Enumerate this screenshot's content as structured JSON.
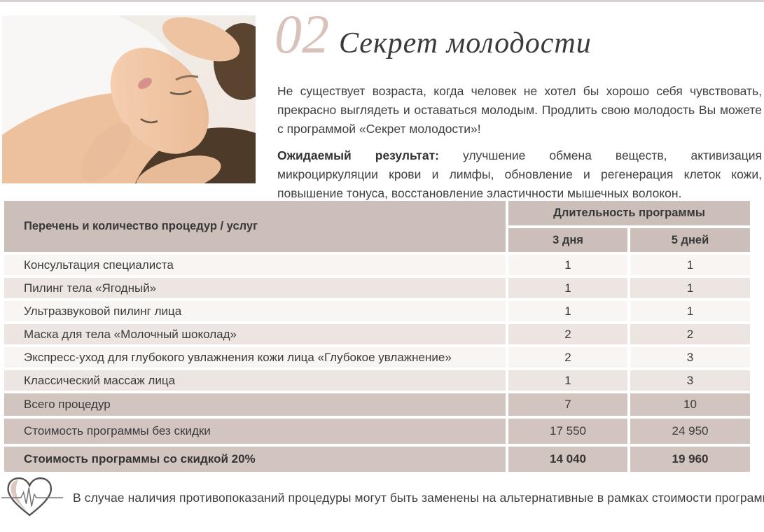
{
  "header": {
    "section_number": "02",
    "title": "Секрет молодости"
  },
  "intro": {
    "text": "Не существует возраста, когда человек не хотел бы хорошо себя чувствовать, прекрасно выглядеть и оставаться молодым. Продлить свою молодость Вы можете с программой «Секрет молодости»!"
  },
  "expected": {
    "label": "Ожидаемый результат:",
    "text": " улучшение обмена веществ, активизация микроциркуляции крови и лимфы, обновление и регенерация клеток кожи, повышение тонуса, восстановление эластичности мышечных волокон."
  },
  "table": {
    "services_header": "Перечень и количество процедур / услуг",
    "duration_header": "Длительность программы",
    "col_3_days": "3 дня",
    "col_5_days": "5 дней",
    "items": [
      {
        "label": "Консультация специалиста",
        "days3": "1",
        "days5": "1"
      },
      {
        "label": "Пилинг тела «Ягодный»",
        "days3": "1",
        "days5": "1"
      },
      {
        "label": "Ультразвуковой пилинг лица",
        "days3": "1",
        "days5": "1"
      },
      {
        "label": "Маска для тела «Молочный шоколад»",
        "days3": "2",
        "days5": "2"
      },
      {
        "label": "Экспресс-уход для глубокого увлажнения кожи лица «Глубокое увлажнение»",
        "days3": "2",
        "days5": "3"
      },
      {
        "label": "Классический массаж лица",
        "days3": "1",
        "days5": "3"
      }
    ],
    "totals": [
      {
        "label": "Всего процедур",
        "days3": "7",
        "days5": "10",
        "bold": false
      },
      {
        "label": "Стоимость программы без скидки",
        "days3": "17 550",
        "days5": "24 950",
        "bold": false
      },
      {
        "label": "Стоимость программы со скидкой 20%",
        "days3": "14 040",
        "days5": "19 960",
        "bold": true
      }
    ]
  },
  "footer": {
    "note": "В случае наличия противопоказаний процедуры могут быть заменены на альтернативные в рамках стоимости программы."
  },
  "colors": {
    "accent_number": "#d8c2b9",
    "table_header_bg": "#ccbfba",
    "row_light": "#f8f5f2",
    "row_tint": "#ede5e2",
    "totals_bg": "#d2c5c0",
    "text": "#3b3b3b"
  }
}
